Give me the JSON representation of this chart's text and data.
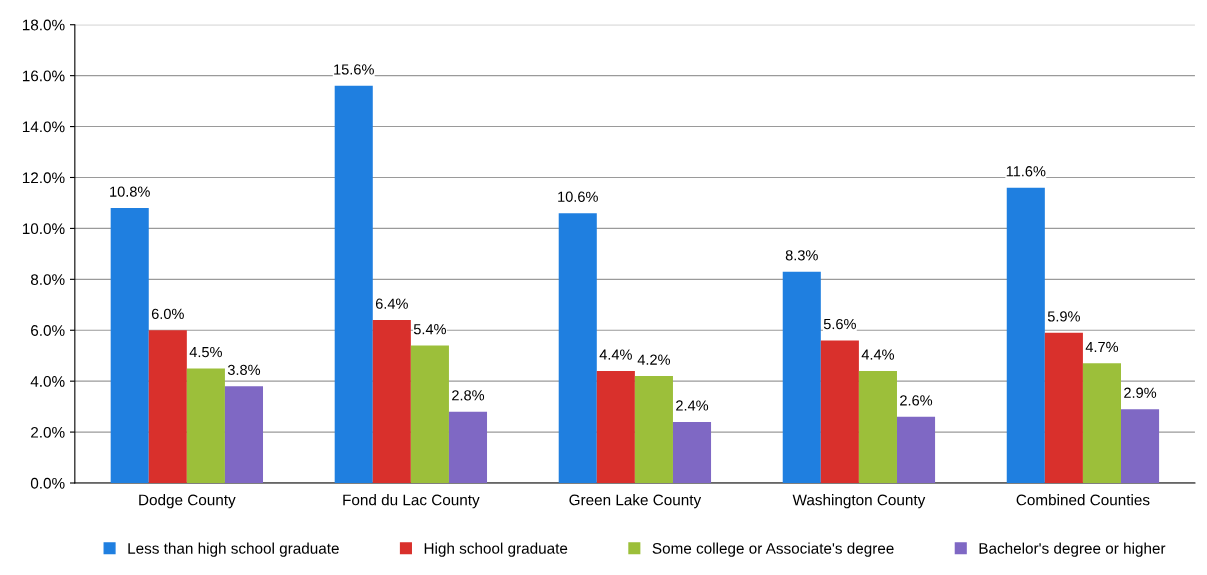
{
  "chart_data": {
    "type": "bar",
    "categories": [
      "Dodge County",
      "Fond du Lac County",
      "Green Lake County",
      "Washington County",
      "Combined Counties"
    ],
    "series": [
      {
        "name": "Less than high school graduate",
        "color": "#1f7fe0",
        "values": [
          10.8,
          15.6,
          10.6,
          8.3,
          11.6
        ],
        "value_labels": [
          "10.8%",
          "15.6%",
          "10.6%",
          "8.3%",
          "11.6%"
        ]
      },
      {
        "name": "High school graduate",
        "color": "#d9302c",
        "values": [
          6.0,
          6.4,
          4.4,
          5.6,
          5.9
        ],
        "value_labels": [
          "6.0%",
          "6.4%",
          "4.4%",
          "5.6%",
          "5.9%"
        ]
      },
      {
        "name": "Some college or Associate's degree",
        "color": "#9cbf3a",
        "values": [
          4.5,
          5.4,
          4.2,
          4.4,
          4.7
        ],
        "value_labels": [
          "4.5%",
          "5.4%",
          "4.2%",
          "4.4%",
          "4.7%"
        ]
      },
      {
        "name": "Bachelor's degree or higher",
        "color": "#7f68c4",
        "values": [
          3.8,
          2.8,
          2.4,
          2.6,
          2.9
        ],
        "value_labels": [
          "3.8%",
          "2.8%",
          "2.4%",
          "2.6%",
          "2.9%"
        ]
      }
    ],
    "ylim": [
      0,
      18
    ],
    "yticks": [
      {
        "value": 0,
        "label": "0.0%"
      },
      {
        "value": 2,
        "label": "2.0%"
      },
      {
        "value": 4,
        "label": "4.0%"
      },
      {
        "value": 6,
        "label": "6.0%"
      },
      {
        "value": 8,
        "label": "8.0%"
      },
      {
        "value": 10,
        "label": "10.0%"
      },
      {
        "value": 12,
        "label": "12.0%"
      },
      {
        "value": 14,
        "label": "14.0%"
      },
      {
        "value": 16,
        "label": "16.0%"
      },
      {
        "value": 18,
        "label": "18.0%"
      }
    ],
    "grid": "y",
    "legend": "bottom"
  }
}
